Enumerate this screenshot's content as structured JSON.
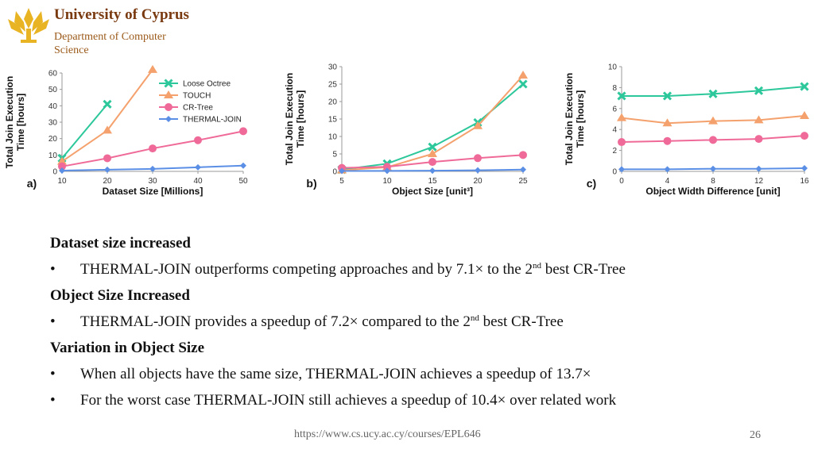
{
  "header": {
    "university": "University of Cyprus",
    "department_line1": "Department of Computer",
    "department_line2": "Science"
  },
  "colors": {
    "loose_octree": "#2cc79a",
    "touch": "#f4a16d",
    "cr_tree": "#ef6a98",
    "thermal_join": "#5b8fe6"
  },
  "chart_data": [
    {
      "type": "line",
      "panel": "a)",
      "xlabel": "Dataset Size [Millions]",
      "ylabel": "Total Join Execution Time [hours]",
      "x": [
        10,
        20,
        30,
        40,
        50
      ],
      "xticks": [
        "10",
        "20",
        "30",
        "40",
        "50"
      ],
      "ylim": [
        0,
        60
      ],
      "yticks": [
        "0",
        "10",
        "20",
        "30",
        "40",
        "50",
        "60"
      ],
      "legend": [
        "Loose Octree",
        "TOUCH",
        "CR-Tree",
        "THERMAL-JOIN"
      ],
      "series": [
        {
          "name": "Loose Octree",
          "values": [
            8,
            41,
            null,
            null,
            null
          ]
        },
        {
          "name": "TOUCH",
          "values": [
            6,
            25,
            62,
            null,
            null
          ]
        },
        {
          "name": "CR-Tree",
          "values": [
            3,
            8,
            14,
            19,
            24.5
          ]
        },
        {
          "name": "THERMAL-JOIN",
          "values": [
            0.5,
            1,
            1.5,
            2.5,
            3.5
          ]
        }
      ]
    },
    {
      "type": "line",
      "panel": "b)",
      "xlabel": "Object Size [unit³]",
      "ylabel": "Total Join Execution Time [hours]",
      "x": [
        5,
        10,
        15,
        20,
        25
      ],
      "xticks": [
        "5",
        "10",
        "15",
        "20",
        "25"
      ],
      "ylim": [
        0,
        30
      ],
      "yticks": [
        "0",
        "5",
        "10",
        "15",
        "20",
        "25",
        "30"
      ],
      "series": [
        {
          "name": "Loose Octree",
          "values": [
            0.5,
            2.2,
            7,
            14,
            25
          ]
        },
        {
          "name": "TOUCH",
          "values": [
            0.3,
            1.2,
            5,
            13,
            27.5
          ]
        },
        {
          "name": "CR-Tree",
          "values": [
            1,
            1.3,
            2.7,
            3.8,
            4.7
          ]
        },
        {
          "name": "THERMAL-JOIN",
          "values": [
            0.1,
            0.15,
            0.2,
            0.3,
            0.5
          ]
        }
      ]
    },
    {
      "type": "line",
      "panel": "c)",
      "xlabel": "Object Width Difference [unit]",
      "ylabel": "Total Join Execution Time [hours]",
      "x": [
        0,
        4,
        8,
        12,
        16
      ],
      "xticks": [
        "0",
        "4",
        "8",
        "12",
        "16"
      ],
      "ylim": [
        0,
        10
      ],
      "yticks": [
        "0",
        "2",
        "4",
        "6",
        "8",
        "10"
      ],
      "series": [
        {
          "name": "Loose Octree",
          "values": [
            7.2,
            7.2,
            7.4,
            7.7,
            8.1
          ]
        },
        {
          "name": "TOUCH",
          "values": [
            5.1,
            4.6,
            4.8,
            4.9,
            5.3
          ]
        },
        {
          "name": "CR-Tree",
          "values": [
            2.8,
            2.9,
            3.0,
            3.1,
            3.4
          ]
        },
        {
          "name": "THERMAL-JOIN",
          "values": [
            0.2,
            0.2,
            0.25,
            0.25,
            0.3
          ]
        }
      ]
    }
  ],
  "content": {
    "h1": "Dataset size increased",
    "b1_pre": "THERMAL-JOIN outperforms competing approaches and by 7.1× to the 2",
    "b1_sup": "nd",
    "b1_post": " best CR-Tree",
    "h2": "Object Size Increased",
    "b2_pre": "THERMAL-JOIN provides a speedup of 7.2× compared to the 2",
    "b2_sup": "nd",
    "b2_post": " best CR-Tree",
    "h3": "Variation in Object Size",
    "b3": "When all objects have the same size, THERMAL-JOIN achieves a speedup of 13.7×",
    "b4": "For the worst case THERMAL-JOIN still achieves a speedup of 10.4× over related work"
  },
  "footer": {
    "url": "https://www.cs.ucy.ac.cy/courses/EPL646",
    "page": "26"
  }
}
